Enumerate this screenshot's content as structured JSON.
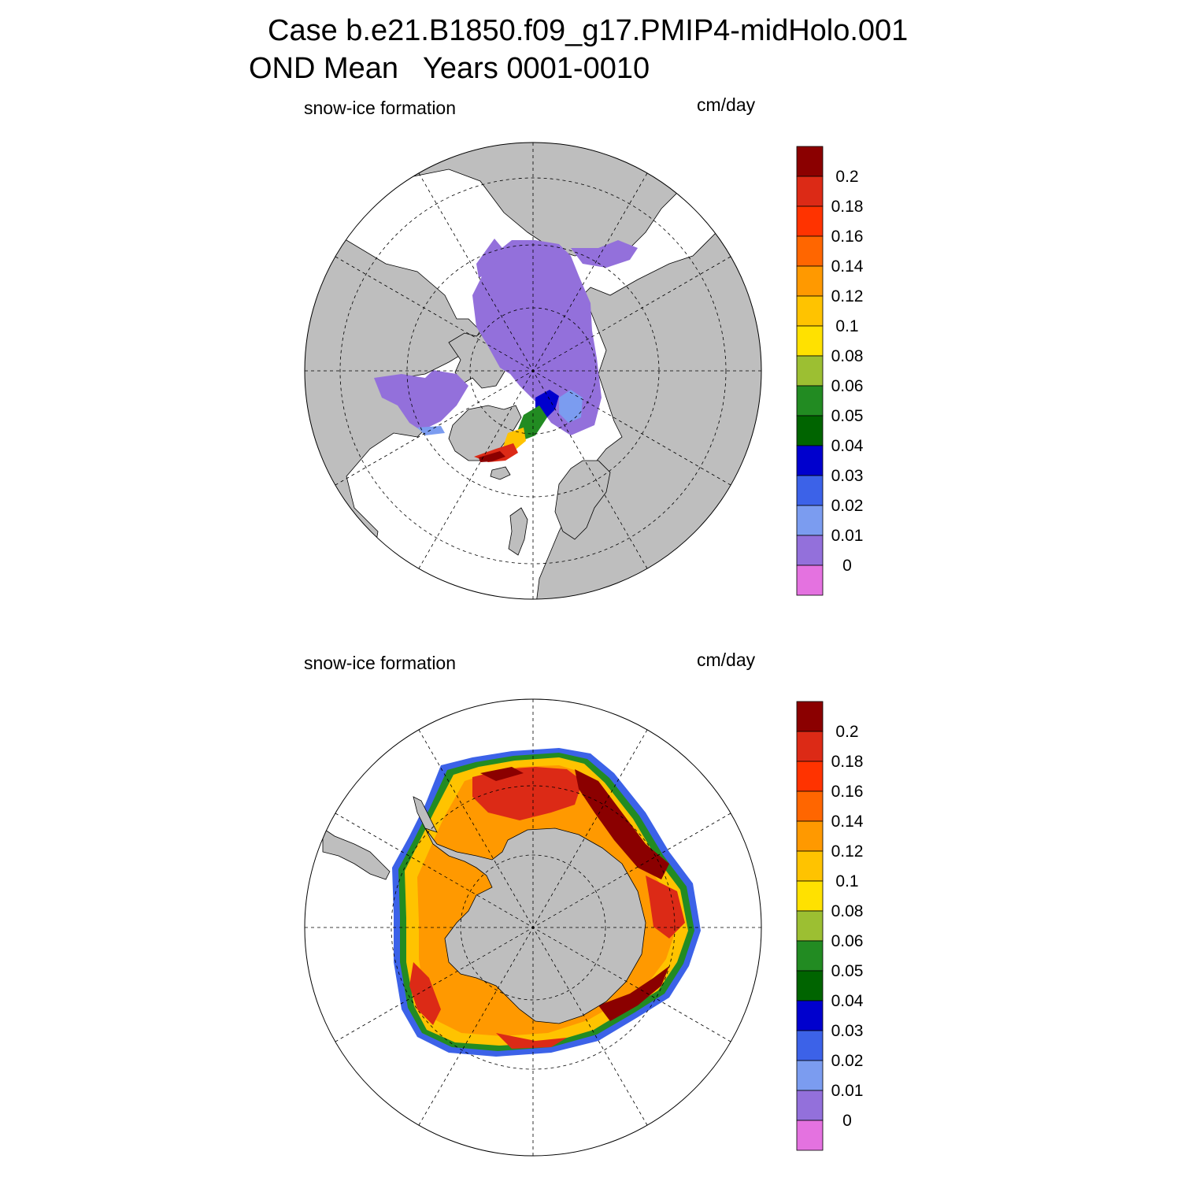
{
  "title": {
    "line1": "Case b.e21.B1850.f09_g17.PMIP4-midHolo.001",
    "line2": "OND Mean   Years 0001-0010"
  },
  "panels": [
    {
      "id": "arctic",
      "hemisphere": "north",
      "left_label": "snow-ice formation",
      "right_label": "cm/day"
    },
    {
      "id": "antarctic",
      "hemisphere": "south",
      "left_label": "snow-ice formation",
      "right_label": "cm/day"
    }
  ],
  "colorbar": {
    "colors": [
      "#e472e0",
      "#9370db",
      "#7b9cf0",
      "#3c62e8",
      "#0000cd",
      "#006400",
      "#228b22",
      "#9cbf32",
      "#ffe100",
      "#ffc300",
      "#ff9900",
      "#ff6600",
      "#ff3300",
      "#dc2a16",
      "#8b0000"
    ],
    "labels": [
      "0",
      "0.01",
      "0.02",
      "0.03",
      "0.04",
      "0.05",
      "0.06",
      "0.08",
      "0.1",
      "0.12",
      "0.14",
      "0.16",
      "0.18",
      "0.2"
    ]
  },
  "map_colors": {
    "land": "#bebebe",
    "ocean": "#ffffff"
  }
}
